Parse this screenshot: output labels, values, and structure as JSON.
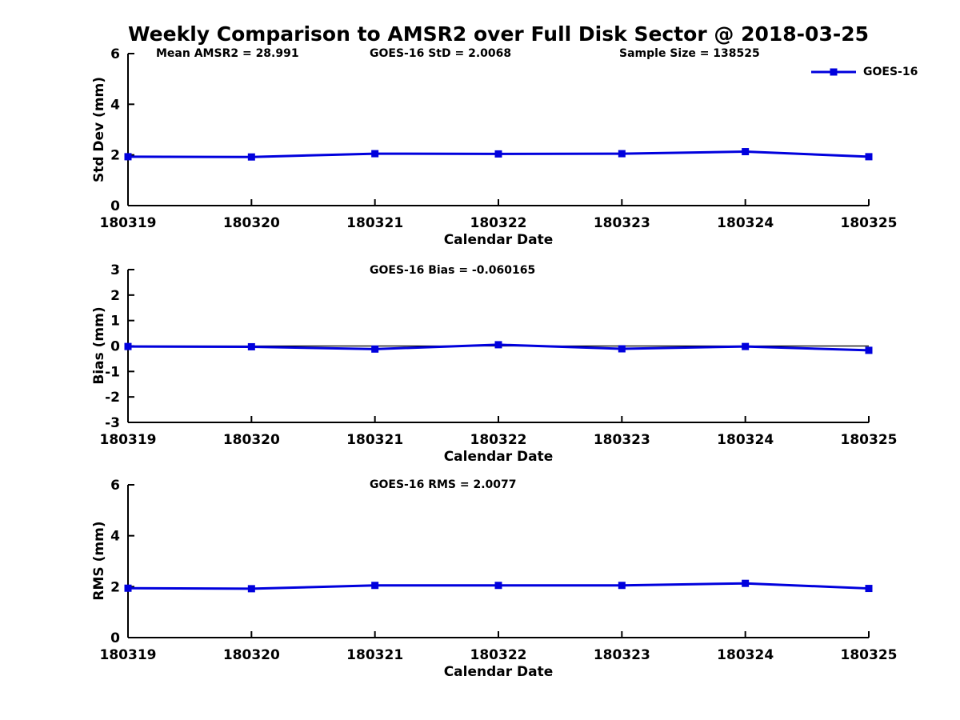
{
  "title": "Weekly Comparison to AMSR2 over Full Disk Sector @ 2018-03-25",
  "legend": {
    "label": "GOES-16"
  },
  "colors": {
    "series": "#0000dd",
    "axis": "#000000",
    "background": "#ffffff"
  },
  "chart_data": [
    {
      "type": "line",
      "annotations": [
        "Mean AMSR2 = 28.991",
        "GOES-16 StD = 2.0068",
        "Sample Size = 138525"
      ],
      "categories": [
        "180319",
        "180320",
        "180321",
        "180322",
        "180323",
        "180324",
        "180325"
      ],
      "series": [
        {
          "name": "GOES-16",
          "values": [
            1.93,
            1.92,
            2.05,
            2.04,
            2.05,
            2.13,
            1.93
          ]
        }
      ],
      "xlabel": "Calendar Date",
      "ylabel": "Std Dev (mm)",
      "ylim": [
        0,
        6
      ],
      "yticks": [
        0,
        2,
        4,
        6
      ],
      "grid": false,
      "marker": "square",
      "legend_position": "top-right"
    },
    {
      "type": "line",
      "annotations": [
        "GOES-16 Bias  = -0.060165"
      ],
      "categories": [
        "180319",
        "180320",
        "180321",
        "180322",
        "180323",
        "180324",
        "180325"
      ],
      "series": [
        {
          "name": "GOES-16",
          "values": [
            -0.02,
            -0.03,
            -0.12,
            0.05,
            -0.11,
            -0.02,
            -0.17
          ]
        }
      ],
      "xlabel": "Calendar Date",
      "ylabel": "Bias (mm)",
      "ylim": [
        -3,
        3
      ],
      "yticks": [
        -3,
        -2,
        -1,
        0,
        1,
        2,
        3
      ],
      "zero_line": true,
      "grid": false,
      "marker": "square"
    },
    {
      "type": "line",
      "annotations": [
        "GOES-16 RMS = 2.0077"
      ],
      "categories": [
        "180319",
        "180320",
        "180321",
        "180322",
        "180323",
        "180324",
        "180325"
      ],
      "series": [
        {
          "name": "GOES-16",
          "values": [
            1.94,
            1.92,
            2.05,
            2.05,
            2.05,
            2.13,
            1.93
          ]
        }
      ],
      "xlabel": "Calendar Date",
      "ylabel": "RMS (mm)",
      "ylim": [
        0,
        6
      ],
      "yticks": [
        0,
        2,
        4,
        6
      ],
      "grid": false,
      "marker": "square"
    }
  ]
}
